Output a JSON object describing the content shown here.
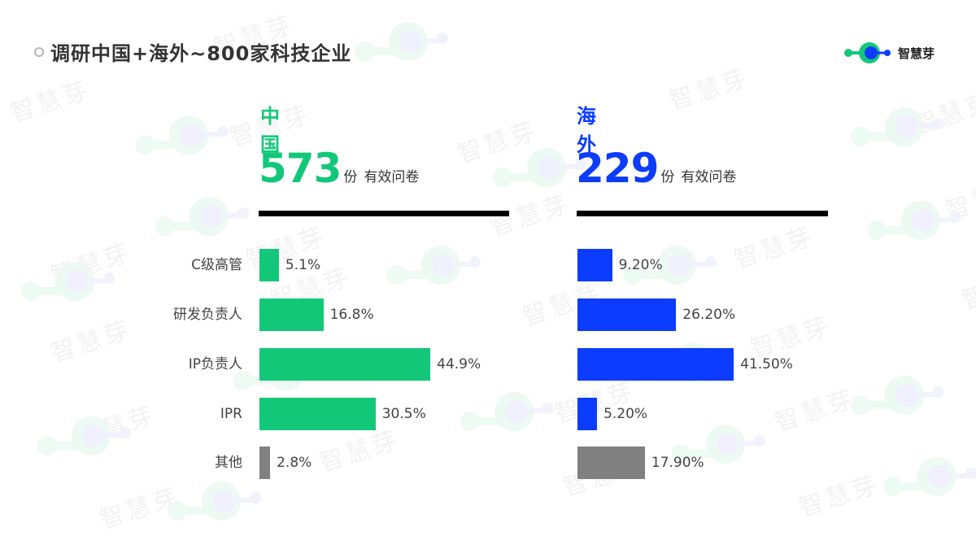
{
  "slide": {
    "title": "调研中国+海外~800家科技企业",
    "brand": {
      "name": "智慧芽",
      "logo_icon": "molecule-logo-icon",
      "watermark_text": "智慧芽"
    }
  },
  "colors": {
    "china": "#12c878",
    "overseas": "#0c3cff",
    "other": "#808080",
    "rule": "#000000",
    "text": "#333333"
  },
  "panels": [
    {
      "key": "china",
      "title": "中国",
      "count": "573",
      "unit": "份",
      "desc": "有效问卷",
      "values": [
        "5.1%",
        "16.8%",
        "44.9%",
        "30.5%",
        "2.8%"
      ]
    },
    {
      "key": "overseas",
      "title": "海外",
      "count": "229",
      "unit": "份",
      "desc": "有效问卷",
      "values": [
        "9.20%",
        "26.20%",
        "41.50%",
        "5.20%",
        "17.90%"
      ]
    }
  ],
  "categories": [
    "C级高管",
    "研发负责人",
    "IP负责人",
    "IPR",
    "其他"
  ],
  "chart_data": [
    {
      "type": "bar",
      "orientation": "horizontal",
      "title": "中国 573份 有效问卷",
      "categories": [
        "C级高管",
        "研发负责人",
        "IP负责人",
        "IPR",
        "其他"
      ],
      "values": [
        5.1,
        16.8,
        44.9,
        30.5,
        2.8
      ],
      "value_labels": [
        "5.1%",
        "16.8%",
        "44.9%",
        "30.5%",
        "2.8%"
      ],
      "bar_colors": [
        "#12c878",
        "#12c878",
        "#12c878",
        "#12c878",
        "#808080"
      ],
      "xlabel": "",
      "ylabel": "",
      "grid": false,
      "legend": false
    },
    {
      "type": "bar",
      "orientation": "horizontal",
      "title": "海外 229份 有效问卷",
      "categories": [
        "C级高管",
        "研发负责人",
        "IP负责人",
        "IPR",
        "其他"
      ],
      "values": [
        9.2,
        26.2,
        41.5,
        5.2,
        17.9
      ],
      "value_labels": [
        "9.20%",
        "26.20%",
        "41.50%",
        "5.20%",
        "17.90%"
      ],
      "bar_colors": [
        "#0c3cff",
        "#0c3cff",
        "#0c3cff",
        "#0c3cff",
        "#808080"
      ],
      "xlabel": "",
      "ylabel": "",
      "grid": false,
      "legend": false
    }
  ]
}
